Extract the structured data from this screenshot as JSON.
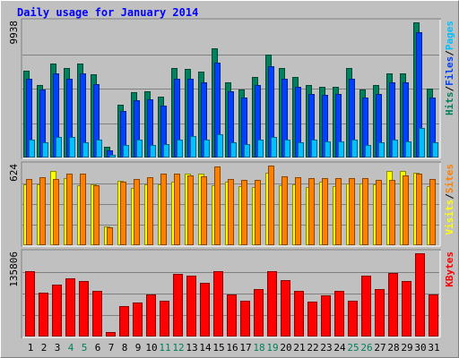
{
  "chart_data": {
    "type": "bar",
    "title": "Daily usage for January 2014",
    "categories": [
      "1",
      "2",
      "3",
      "4",
      "5",
      "6",
      "7",
      "8",
      "9",
      "10",
      "11",
      "12",
      "13",
      "14",
      "15",
      "16",
      "17",
      "18",
      "19",
      "20",
      "21",
      "22",
      "23",
      "24",
      "25",
      "26",
      "27",
      "28",
      "29",
      "30",
      "31"
    ],
    "weekend_days": [
      "4",
      "5",
      "11",
      "12",
      "18",
      "19",
      "25",
      "26"
    ],
    "panels": [
      {
        "id": "hits",
        "ymax": 9938,
        "ymax_label": "9938",
        "legend": [
          {
            "text": "Hits",
            "color": "#00805c"
          },
          {
            "text": "/",
            "color": "#000000"
          },
          {
            "text": "Files",
            "color": "#0040ff"
          },
          {
            "text": "/",
            "color": "#000000"
          },
          {
            "text": "Pages",
            "color": "#00c0ff"
          }
        ],
        "series": [
          {
            "name": "Hits",
            "color": "#00805c",
            "values": [
              6400,
              5300,
              6900,
              6600,
              6900,
              6100,
              800,
              3900,
              4800,
              4900,
              4500,
              6600,
              6500,
              6300,
              8000,
              5500,
              5000,
              5900,
              7600,
              6600,
              5900,
              5300,
              5200,
              5200,
              6600,
              5000,
              5300,
              6200,
              6200,
              9938,
              5100
            ]
          },
          {
            "name": "Files",
            "color": "#0040ff",
            "values": [
              5800,
              5000,
              6200,
              5800,
              6200,
              5400,
              500,
              3400,
              4200,
              4300,
              3800,
              5800,
              5800,
              5500,
              7000,
              4900,
              4400,
              5300,
              6700,
              5800,
              5200,
              4700,
              4600,
              4700,
              5800,
              4400,
              4700,
              5500,
              5500,
              9200,
              4400
            ]
          },
          {
            "name": "Pages",
            "color": "#00c0ff",
            "values": [
              1300,
              1100,
              1500,
              1500,
              1100,
              1300,
              200,
              900,
              1300,
              900,
              1000,
              1300,
              1600,
              1300,
              1700,
              1100,
              1000,
              1300,
              1500,
              1300,
              1100,
              1300,
              1200,
              1200,
              1300,
              900,
              1100,
              1300,
              1200,
              2200,
              1100
            ]
          }
        ]
      },
      {
        "id": "visits",
        "ymax": 624,
        "ymax_label": "624",
        "legend": [
          {
            "text": "Visits",
            "color": "#ffff00"
          },
          {
            "text": "/",
            "color": "#000000"
          },
          {
            "text": "Sites",
            "color": "#ff8000"
          }
        ],
        "series": [
          {
            "name": "Visits",
            "color": "#ffff00",
            "values": [
              480,
              475,
              580,
              525,
              470,
              480,
              150,
              505,
              450,
              480,
              480,
              495,
              560,
              560,
              470,
              495,
              460,
              455,
              565,
              470,
              480,
              455,
              495,
              460,
              485,
              485,
              475,
              580,
              580,
              570,
              460
            ]
          },
          {
            "name": "Sites",
            "color": "#ff8000",
            "values": [
              520,
              530,
              520,
              560,
              560,
              470,
              140,
              495,
              520,
              530,
              560,
              560,
              550,
              540,
              620,
              520,
              510,
              510,
              625,
              540,
              530,
              525,
              525,
              525,
              525,
              525,
              510,
              510,
              550,
              560,
              520
            ]
          }
        ]
      },
      {
        "id": "kbytes",
        "ymax": 135806,
        "ymax_label": "135806",
        "legend": [
          {
            "text": "KBytes",
            "color": "#ff0000"
          }
        ],
        "series": [
          {
            "name": "KBytes",
            "color": "#ff0000",
            "values": [
              106000,
              72000,
              84000,
              95000,
              90000,
              74000,
              8000,
              49000,
              56000,
              68000,
              59000,
              102000,
              100000,
              88000,
              107000,
              69000,
              59000,
              77000,
              106000,
              92000,
              75000,
              57000,
              67000,
              74000,
              58000,
              100000,
              78000,
              104000,
              91000,
              135806,
              69000
            ]
          }
        ]
      }
    ]
  }
}
